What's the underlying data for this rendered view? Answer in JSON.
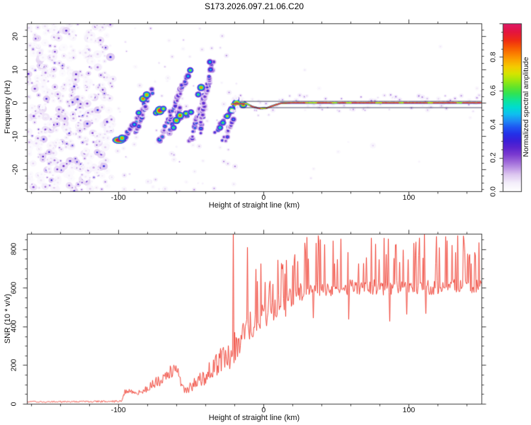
{
  "title": "S173.2026.097.21.06.C20",
  "colors": {
    "background": "#ffffff",
    "axis": "#3c3c3c",
    "text": "#111111",
    "snr_line": "#ee3528",
    "overlay_line": "#14143c"
  },
  "chart_data": [
    {
      "type": "heatmap",
      "title": "S173.2026.097.21.06.C20",
      "xlabel": "Height of straight line (km)",
      "ylabel": "Frequency (Hz)",
      "xlim": [
        -163,
        150
      ],
      "ylim": [
        -26.6,
        23.9
      ],
      "xticks": [
        [
          -100,
          "-100"
        ],
        [
          0,
          "0"
        ],
        [
          100,
          "100"
        ]
      ],
      "yticks": [
        [
          -20,
          "-20"
        ],
        [
          -10,
          "-10"
        ],
        [
          0,
          "0"
        ],
        [
          10,
          "10"
        ],
        [
          20,
          "20"
        ]
      ],
      "grid": false,
      "colorbar": {
        "label": "Normalized spectral amplitude",
        "range": [
          0,
          1
        ],
        "ticks": [
          [
            0,
            "0.0"
          ],
          [
            0.2,
            "0.2"
          ],
          [
            0.4,
            "0.4"
          ],
          [
            0.6,
            "0.6"
          ],
          [
            0.8,
            "0.8"
          ]
        ],
        "stops": [
          [
            0.0,
            "#ffffff"
          ],
          [
            0.05,
            "#f4eefb"
          ],
          [
            0.1,
            "#ddc6f0"
          ],
          [
            0.14,
            "#bb93e4"
          ],
          [
            0.18,
            "#9a63d8"
          ],
          [
            0.22,
            "#7a3ad0"
          ],
          [
            0.26,
            "#5a24cf"
          ],
          [
            0.3,
            "#3b1fd8"
          ],
          [
            0.34,
            "#2430e8"
          ],
          [
            0.38,
            "#1f55f2"
          ],
          [
            0.42,
            "#1e8cf5"
          ],
          [
            0.46,
            "#0fc0ef"
          ],
          [
            0.5,
            "#00dcd0"
          ],
          [
            0.54,
            "#0fe49a"
          ],
          [
            0.58,
            "#2fe356"
          ],
          [
            0.62,
            "#62e42a"
          ],
          [
            0.66,
            "#9ee80f"
          ],
          [
            0.7,
            "#d6e400"
          ],
          [
            0.74,
            "#f4cc00"
          ],
          [
            0.78,
            "#fba600"
          ],
          [
            0.82,
            "#fb7d00"
          ],
          [
            0.86,
            "#f75403"
          ],
          [
            0.9,
            "#ef2b14"
          ],
          [
            0.95,
            "#e41440"
          ],
          [
            1.0,
            "#de1a68"
          ]
        ]
      },
      "noise_region": {
        "h_range": [
          -163,
          -103.5
        ],
        "f_range": [
          -26.6,
          23.9
        ],
        "blob_count": 540,
        "intensity_range": [
          0.04,
          0.33
        ]
      },
      "speckle_mid": {
        "h_range": [
          -103,
          -18
        ],
        "count": 95,
        "intensity_range": [
          0.04,
          0.16
        ]
      },
      "speckle_right": {
        "h_range": [
          20,
          150
        ],
        "count": 12,
        "intensity_range": [
          0.04,
          0.09
        ]
      },
      "entry_bar": {
        "h_center": -99.5,
        "f_center": -11.2,
        "h_halfwidth": 4,
        "intensity": 1.0
      },
      "streaks": [
        {
          "h1": -96,
          "f1": -11,
          "h2": -76,
          "f2": 4,
          "intensity": 0.42
        },
        {
          "h1": -89,
          "f1": -9.5,
          "h2": -81,
          "f2": -1,
          "intensity": 0.38
        },
        {
          "h1": -72,
          "f1": -12,
          "h2": -52,
          "f2": 9,
          "intensity": 0.42
        },
        {
          "h1": -66,
          "f1": -10,
          "h2": -57,
          "f2": -1,
          "intensity": 0.36
        },
        {
          "h1": -62,
          "f1": -6,
          "h2": -49,
          "f2": -2.5,
          "intensity": 0.45
        },
        {
          "h1": -51,
          "f1": -12,
          "h2": -38,
          "f2": 6,
          "intensity": 0.4
        },
        {
          "h1": -44,
          "f1": -9,
          "h2": -35,
          "f2": 13,
          "intensity": 0.33
        },
        {
          "h1": -33,
          "f1": -9,
          "h2": -17,
          "f2": 1.5,
          "intensity": 0.42
        },
        {
          "h1": -28,
          "f1": -12,
          "h2": -21,
          "f2": -5,
          "intensity": 0.34
        }
      ],
      "hotspots": [
        [
          -97.5,
          -10.6,
          0.8
        ],
        [
          -89,
          -6.5,
          0.5
        ],
        [
          -86,
          -3,
          0.6
        ],
        [
          -83,
          1.2,
          0.85
        ],
        [
          -80.5,
          2.4,
          0.8
        ],
        [
          -74,
          -3,
          0.7
        ],
        [
          -71.5,
          -2.3,
          1.0
        ],
        [
          -69,
          -1.8,
          0.7
        ],
        [
          -62,
          -7.5,
          0.6
        ],
        [
          -60,
          -5.3,
          0.8
        ],
        [
          -57.5,
          -3.8,
          0.85
        ],
        [
          -53.5,
          -3.2,
          0.7
        ],
        [
          -50,
          -2.8,
          0.6
        ],
        [
          -52,
          8,
          0.5
        ],
        [
          -50.5,
          9.8,
          0.65
        ],
        [
          -45,
          2.5,
          0.6
        ],
        [
          -43,
          4.6,
          0.8
        ],
        [
          -37,
          12.3,
          0.5
        ],
        [
          -36.5,
          10,
          0.45
        ],
        [
          -30,
          -7.5,
          0.6
        ],
        [
          -28,
          -6,
          0.6
        ],
        [
          -25,
          -4,
          0.7
        ],
        [
          -22,
          -2.2,
          0.8
        ],
        [
          -18.5,
          -0.3,
          1.0
        ],
        [
          -14,
          -0.5,
          0.9
        ]
      ],
      "trace": {
        "h_range": [
          -22,
          150
        ],
        "wobble": [
          [
            -22,
            -0.4
          ],
          [
            -12,
            -0.2
          ],
          [
            -8,
            -1.1
          ],
          [
            -3,
            -1.7
          ],
          [
            2,
            -1.6
          ],
          [
            7,
            -0.8
          ],
          [
            12,
            -0.1
          ],
          [
            20,
            0
          ],
          [
            150,
            0
          ]
        ],
        "red_segments": [
          [
            -21,
            -13
          ],
          [
            -9,
            -2
          ],
          [
            2,
            29
          ],
          [
            37,
            47
          ],
          [
            51,
            57
          ],
          [
            61,
            77
          ],
          [
            82,
            93
          ],
          [
            97,
            113
          ],
          [
            117,
            133
          ],
          [
            137,
            150
          ]
        ],
        "fuzz_halfwidth_hz": 2.6
      },
      "overlay_lines": [
        {
          "h1": -16,
          "h2": 150,
          "f": 0.55
        },
        {
          "h1": -16,
          "h2": 150,
          "f": -1.35
        }
      ]
    },
    {
      "type": "line",
      "xlabel": "Height of straight line (km)",
      "ylabel": "SNR (10 * v/v)",
      "xlim": [
        -163,
        150
      ],
      "ylim": [
        0,
        880
      ],
      "xticks": [
        [
          -100,
          "-100"
        ],
        [
          0,
          "0"
        ],
        [
          100,
          "100"
        ]
      ],
      "yticks": [
        [
          0,
          "0"
        ],
        [
          200,
          "200"
        ],
        [
          400,
          "400"
        ],
        [
          600,
          "600"
        ],
        [
          800,
          "800"
        ]
      ],
      "grid": false,
      "envelope": [
        [
          -163,
          10,
          5
        ],
        [
          -140,
          11,
          6
        ],
        [
          -120,
          11,
          6
        ],
        [
          -105,
          12,
          7
        ],
        [
          -98,
          13,
          8
        ],
        [
          -96.5,
          55,
          18
        ],
        [
          -94,
          72,
          22
        ],
        [
          -91,
          62,
          18
        ],
        [
          -87,
          58,
          16
        ],
        [
          -83,
          70,
          25
        ],
        [
          -79,
          88,
          35
        ],
        [
          -74,
          112,
          45
        ],
        [
          -69,
          132,
          50
        ],
        [
          -64,
          168,
          55
        ],
        [
          -61,
          188,
          50
        ],
        [
          -59,
          160,
          55
        ],
        [
          -56,
          78,
          30
        ],
        [
          -53,
          72,
          30
        ],
        [
          -50,
          92,
          40
        ],
        [
          -46,
          112,
          55
        ],
        [
          -42,
          132,
          60
        ],
        [
          -38,
          160,
          75
        ],
        [
          -34,
          188,
          85
        ],
        [
          -30,
          222,
          100
        ],
        [
          -26,
          242,
          110
        ],
        [
          -22,
          262,
          120
        ],
        [
          -19,
          300,
          130
        ],
        [
          -16,
          332,
          130
        ],
        [
          -13,
          362,
          130
        ],
        [
          -10,
          392,
          120
        ],
        [
          -7,
          420,
          110
        ],
        [
          -4,
          442,
          105
        ],
        [
          0,
          462,
          100
        ],
        [
          4,
          482,
          95
        ],
        [
          8,
          502,
          90
        ],
        [
          12,
          526,
          85
        ],
        [
          16,
          546,
          80
        ],
        [
          20,
          562,
          75
        ],
        [
          25,
          576,
          70
        ],
        [
          30,
          586,
          65
        ],
        [
          40,
          596,
          60
        ],
        [
          55,
          602,
          58
        ],
        [
          70,
          606,
          58
        ],
        [
          85,
          600,
          58
        ],
        [
          100,
          606,
          55
        ],
        [
          115,
          600,
          55
        ],
        [
          130,
          606,
          55
        ],
        [
          150,
          602,
          55
        ]
      ],
      "events": [
        [
          -21,
          915
        ],
        [
          -11.2,
          810
        ]
      ],
      "spikes": {
        "h_start": -6,
        "up_prob": 0.18,
        "up_add_min": 120,
        "up_add_max": 280,
        "down_prob": 0.022,
        "down_min": 415,
        "down_max": 470
      }
    }
  ]
}
